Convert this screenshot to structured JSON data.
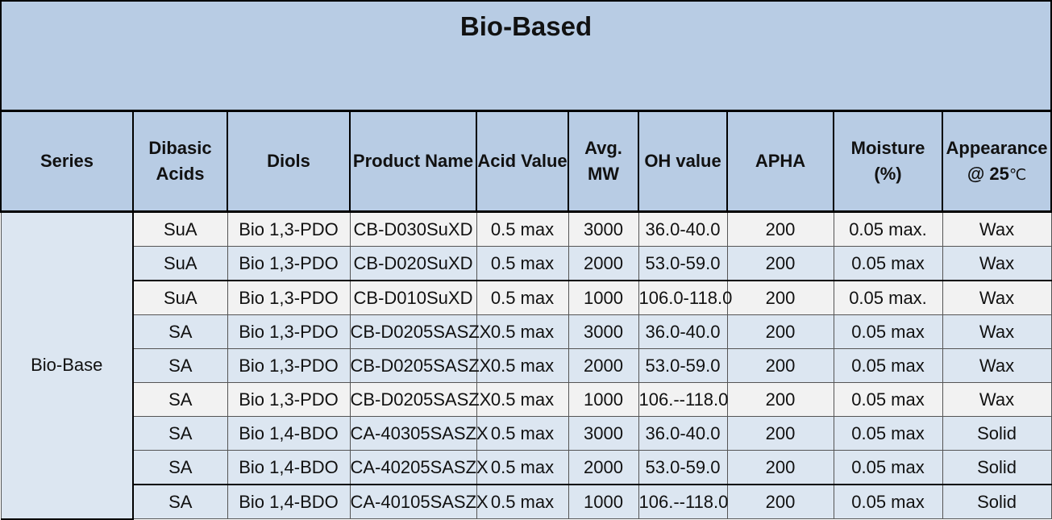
{
  "title": "Bio-Based",
  "columns": [
    {
      "line1": "Series",
      "line2": ""
    },
    {
      "line1": "Dibasic",
      "line2": "Acids"
    },
    {
      "line1": "Diols",
      "line2": ""
    },
    {
      "line1": "Product Name",
      "line2": ""
    },
    {
      "line1": "Acid Value",
      "line2": ""
    },
    {
      "line1": "Avg.",
      "line2": "MW"
    },
    {
      "line1": "OH value",
      "line2": ""
    },
    {
      "line1": "APHA",
      "line2": ""
    },
    {
      "line1": "Moisture",
      "line2": "(%)"
    },
    {
      "line1": "Appearance",
      "line2": "@ 25",
      "unit": "℃"
    }
  ],
  "series_label": "Bio-Base",
  "rows": [
    {
      "acid": "SuA",
      "diol": "Bio 1,3-PDO",
      "product": "CB-D030SuXD",
      "acid_value": "0.5 max",
      "mw": "3000",
      "oh": "36.0-40.0",
      "apha": "200",
      "moisture": "0.05 max.",
      "appearance": "Wax"
    },
    {
      "acid": "SuA",
      "diol": "Bio 1,3-PDO",
      "product": "CB-D020SuXD",
      "acid_value": "0.5 max",
      "mw": "2000",
      "oh": "53.0-59.0",
      "apha": "200",
      "moisture": "0.05 max",
      "appearance": "Wax"
    },
    {
      "acid": "SuA",
      "diol": "Bio 1,3-PDO",
      "product": "CB-D010SuXD",
      "acid_value": "0.5 max",
      "mw": "1000",
      "oh": "106.0-118.0",
      "apha": "200",
      "moisture": "0.05 max.",
      "appearance": "Wax"
    },
    {
      "acid": "SA",
      "diol": "Bio 1,3-PDO",
      "product": "CB-D0205SASZX",
      "acid_value": "0.5 max",
      "mw": "3000",
      "oh": "36.0-40.0",
      "apha": "200",
      "moisture": "0.05 max",
      "appearance": "Wax"
    },
    {
      "acid": "SA",
      "diol": "Bio 1,3-PDO",
      "product": "CB-D0205SASZX",
      "acid_value": "0.5 max",
      "mw": "2000",
      "oh": "53.0-59.0",
      "apha": "200",
      "moisture": "0.05 max",
      "appearance": "Wax"
    },
    {
      "acid": "SA",
      "diol": "Bio 1,3-PDO",
      "product": "CB-D0205SASZX",
      "acid_value": "0.5 max",
      "mw": "1000",
      "oh": "106.--118.0",
      "apha": "200",
      "moisture": "0.05 max",
      "appearance": "Wax"
    },
    {
      "acid": "SA",
      "diol": "Bio 1,4-BDO",
      "product": "CA-40305SASZX",
      "acid_value": "0.5 max",
      "mw": "3000",
      "oh": "36.0-40.0",
      "apha": "200",
      "moisture": "0.05 max",
      "appearance": "Solid"
    },
    {
      "acid": "SA",
      "diol": "Bio 1,4-BDO",
      "product": "CA-40205SASZX",
      "acid_value": "0.5 max",
      "mw": "2000",
      "oh": "53.0-59.0",
      "apha": "200",
      "moisture": "0.05 max",
      "appearance": "Solid"
    },
    {
      "acid": "SA",
      "diol": "Bio 1,4-BDO",
      "product": "CA-40105SASZX",
      "acid_value": "0.5 max",
      "mw": "1000",
      "oh": "106.--118.0",
      "apha": "200",
      "moisture": "0.05 max",
      "appearance": "Solid"
    }
  ]
}
